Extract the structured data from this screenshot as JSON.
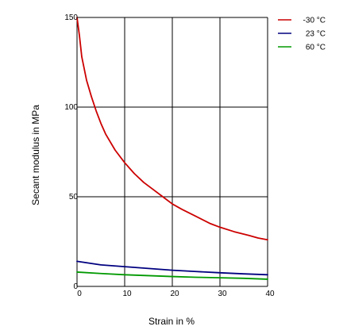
{
  "chart_data": {
    "type": "line",
    "xlabel": "Strain in %",
    "ylabel": "Secant modulus in MPa",
    "xlim": [
      0,
      40
    ],
    "ylim": [
      0,
      150
    ],
    "xticks": [
      "0",
      "10",
      "20",
      "30",
      "40"
    ],
    "yticks": [
      "0",
      "50",
      "100",
      "150"
    ],
    "grid": true,
    "legend_position": "top-right",
    "series": [
      {
        "name": "-30 °C",
        "color": "#cc0000",
        "x": [
          0,
          0.5,
          1,
          2,
          3,
          4,
          5,
          6,
          8,
          10,
          12,
          14,
          16,
          18,
          20,
          22,
          25,
          28,
          30,
          33,
          36,
          38,
          40
        ],
        "y": [
          150,
          140,
          128,
          115,
          106,
          98,
          91,
          85,
          76,
          69,
          63,
          58,
          54,
          50,
          46,
          43,
          39,
          35,
          33,
          30.5,
          28.5,
          27,
          26
        ]
      },
      {
        "name": "23 °C",
        "color": "#000080",
        "x": [
          0,
          5,
          10,
          15,
          20,
          25,
          30,
          35,
          40
        ],
        "y": [
          14,
          12,
          11,
          10,
          9,
          8.3,
          7.6,
          7,
          6.5
        ]
      },
      {
        "name": "60 °C",
        "color": "#009900",
        "x": [
          0,
          5,
          10,
          15,
          20,
          25,
          30,
          35,
          40
        ],
        "y": [
          8,
          7.2,
          6.5,
          6,
          5.5,
          5.1,
          4.8,
          4.5,
          4
        ]
      }
    ]
  }
}
